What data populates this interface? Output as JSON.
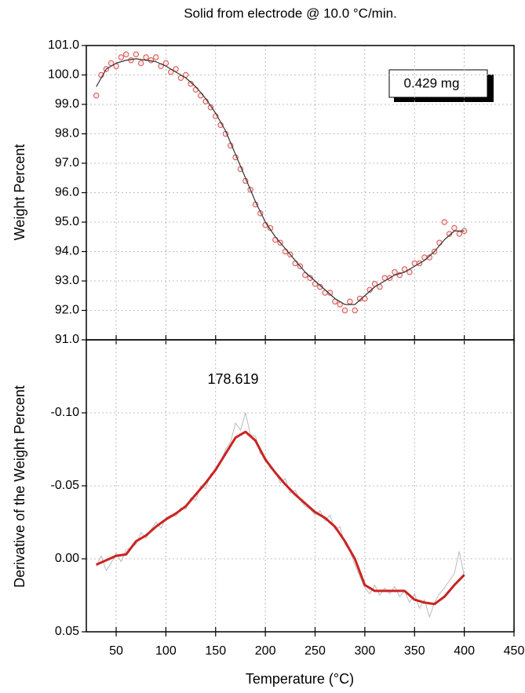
{
  "chart_data": [
    {
      "type": "scatter",
      "title": "Solid from electrode @ 10.0 °C/min.",
      "ylabel": "Weight Percent",
      "annotation": "0.429 mg",
      "xlim": [
        20,
        450
      ],
      "xticks": [
        50,
        100,
        150,
        200,
        250,
        300,
        350,
        400,
        450
      ],
      "show_xtick_labels": false,
      "ylim": [
        91,
        101
      ],
      "yticks": [
        {
          "value": 91,
          "label": "91.0"
        },
        {
          "value": 92,
          "label": "92.0"
        },
        {
          "value": 93,
          "label": "93.0"
        },
        {
          "value": 94,
          "label": "94.0"
        },
        {
          "value": 95,
          "label": "95.0"
        },
        {
          "value": 96,
          "label": "96.0"
        },
        {
          "value": 97,
          "label": "97.0"
        },
        {
          "value": 98,
          "label": "98.0"
        },
        {
          "value": 99,
          "label": "99.0"
        },
        {
          "value": 100,
          "label": "100.0"
        },
        {
          "value": 101,
          "label": "101.0"
        }
      ],
      "grid": true,
      "series": [
        {
          "style": "markers",
          "color": "#d9534f",
          "x": [
            30,
            35,
            40,
            45,
            50,
            55,
            60,
            65,
            70,
            75,
            80,
            85,
            90,
            95,
            100,
            105,
            110,
            115,
            120,
            125,
            130,
            135,
            140,
            145,
            150,
            155,
            160,
            165,
            170,
            175,
            180,
            185,
            190,
            195,
            200,
            205,
            210,
            215,
            220,
            225,
            230,
            235,
            240,
            245,
            250,
            255,
            260,
            265,
            270,
            275,
            280,
            285,
            290,
            295,
            300,
            305,
            310,
            315,
            320,
            325,
            330,
            335,
            340,
            345,
            350,
            355,
            360,
            365,
            370,
            375,
            380,
            385,
            390,
            395,
            400
          ],
          "values": [
            99.3,
            100.0,
            100.2,
            100.4,
            100.3,
            100.6,
            100.7,
            100.5,
            100.7,
            100.4,
            100.6,
            100.5,
            100.6,
            100.3,
            100.4,
            100.1,
            100.2,
            99.9,
            100.0,
            99.7,
            99.5,
            99.3,
            99.1,
            98.9,
            98.6,
            98.3,
            98.0,
            97.6,
            97.2,
            96.8,
            96.4,
            96.1,
            95.6,
            95.3,
            94.9,
            94.8,
            94.4,
            94.3,
            94.0,
            93.9,
            93.6,
            93.5,
            93.2,
            93.1,
            92.9,
            92.8,
            92.6,
            92.6,
            92.3,
            92.2,
            92.0,
            92.3,
            92.0,
            92.4,
            92.4,
            92.7,
            92.9,
            92.8,
            93.1,
            93.1,
            93.3,
            93.2,
            93.4,
            93.3,
            93.6,
            93.6,
            93.8,
            93.8,
            94.0,
            94.3,
            95.0,
            94.6,
            94.8,
            94.6,
            94.7
          ]
        },
        {
          "style": "line",
          "color": "#333333",
          "width": 1.2,
          "x": [
            30,
            40,
            50,
            60,
            70,
            80,
            90,
            100,
            110,
            120,
            130,
            140,
            150,
            160,
            170,
            180,
            190,
            200,
            210,
            220,
            230,
            240,
            250,
            260,
            270,
            280,
            290,
            300,
            310,
            320,
            330,
            340,
            350,
            360,
            370,
            380,
            390,
            400
          ],
          "values": [
            99.6,
            100.2,
            100.4,
            100.5,
            100.55,
            100.5,
            100.45,
            100.3,
            100.1,
            99.9,
            99.6,
            99.2,
            98.7,
            98.1,
            97.3,
            96.5,
            95.7,
            95.0,
            94.5,
            94.1,
            93.7,
            93.3,
            93.0,
            92.7,
            92.4,
            92.2,
            92.2,
            92.5,
            92.8,
            93.0,
            93.2,
            93.3,
            93.5,
            93.7,
            94.0,
            94.4,
            94.7,
            94.7
          ]
        }
      ]
    },
    {
      "type": "line",
      "ylabel": "Derivative of the Weight Percent",
      "xlabel": "Temperature (°C)",
      "peak_label": "178.619",
      "xlim": [
        20,
        450
      ],
      "xticks": [
        50,
        100,
        150,
        200,
        250,
        300,
        350,
        400,
        450
      ],
      "show_xtick_labels": true,
      "ylim": [
        0.05,
        -0.15
      ],
      "yticks": [
        {
          "value": -0.1,
          "label": "-0.10"
        },
        {
          "value": -0.05,
          "label": "-0.05"
        },
        {
          "value": 0,
          "label": "0.00"
        },
        {
          "value": 0.05,
          "label": "0.05"
        }
      ],
      "grid": true,
      "series": [
        {
          "style": "line",
          "color": "#bbbbbb",
          "width": 1,
          "x": [
            30,
            35,
            40,
            45,
            50,
            55,
            60,
            65,
            70,
            75,
            80,
            85,
            90,
            95,
            100,
            105,
            110,
            115,
            120,
            125,
            130,
            135,
            140,
            145,
            150,
            155,
            160,
            165,
            170,
            175,
            180,
            185,
            190,
            195,
            200,
            205,
            210,
            215,
            220,
            225,
            230,
            235,
            240,
            245,
            250,
            255,
            260,
            265,
            270,
            275,
            280,
            285,
            290,
            295,
            300,
            305,
            310,
            315,
            320,
            325,
            330,
            335,
            340,
            345,
            350,
            355,
            360,
            365,
            370,
            375,
            380,
            385,
            390,
            395,
            400
          ],
          "values": [
            0.005,
            -0.002,
            0.008,
            0.003,
            -0.004,
            0.002,
            -0.006,
            -0.008,
            -0.01,
            -0.018,
            -0.014,
            -0.02,
            -0.025,
            -0.021,
            -0.028,
            -0.03,
            -0.029,
            -0.035,
            -0.034,
            -0.042,
            -0.04,
            -0.05,
            -0.048,
            -0.058,
            -0.06,
            -0.066,
            -0.075,
            -0.08,
            -0.093,
            -0.088,
            -0.1,
            -0.085,
            -0.084,
            -0.072,
            -0.07,
            -0.062,
            -0.06,
            -0.052,
            -0.055,
            -0.045,
            -0.047,
            -0.04,
            -0.036,
            -0.034,
            -0.03,
            -0.033,
            -0.026,
            -0.03,
            -0.02,
            -0.022,
            -0.01,
            -0.005,
            0.004,
            0.012,
            0.02,
            0.024,
            0.018,
            0.025,
            0.02,
            0.024,
            0.019,
            0.026,
            0.022,
            0.03,
            0.024,
            0.034,
            0.028,
            0.04,
            0.03,
            0.024,
            0.02,
            0.015,
            0.01,
            -0.005,
            0.012
          ]
        },
        {
          "style": "line",
          "color": "#cc2222",
          "width": 3,
          "x": [
            30,
            40,
            50,
            60,
            70,
            80,
            90,
            100,
            110,
            120,
            130,
            140,
            150,
            160,
            170,
            180,
            190,
            200,
            210,
            220,
            230,
            240,
            250,
            260,
            270,
            280,
            290,
            300,
            310,
            320,
            330,
            340,
            350,
            360,
            370,
            380,
            390,
            400
          ],
          "values": [
            0.004,
            0.001,
            -0.002,
            -0.003,
            -0.012,
            -0.016,
            -0.022,
            -0.027,
            -0.031,
            -0.036,
            -0.044,
            -0.052,
            -0.061,
            -0.072,
            -0.083,
            -0.087,
            -0.081,
            -0.068,
            -0.059,
            -0.051,
            -0.044,
            -0.038,
            -0.032,
            -0.028,
            -0.022,
            -0.012,
            0.0,
            0.018,
            0.022,
            0.022,
            0.022,
            0.022,
            0.028,
            0.03,
            0.031,
            0.026,
            0.018,
            0.011
          ]
        }
      ]
    }
  ]
}
